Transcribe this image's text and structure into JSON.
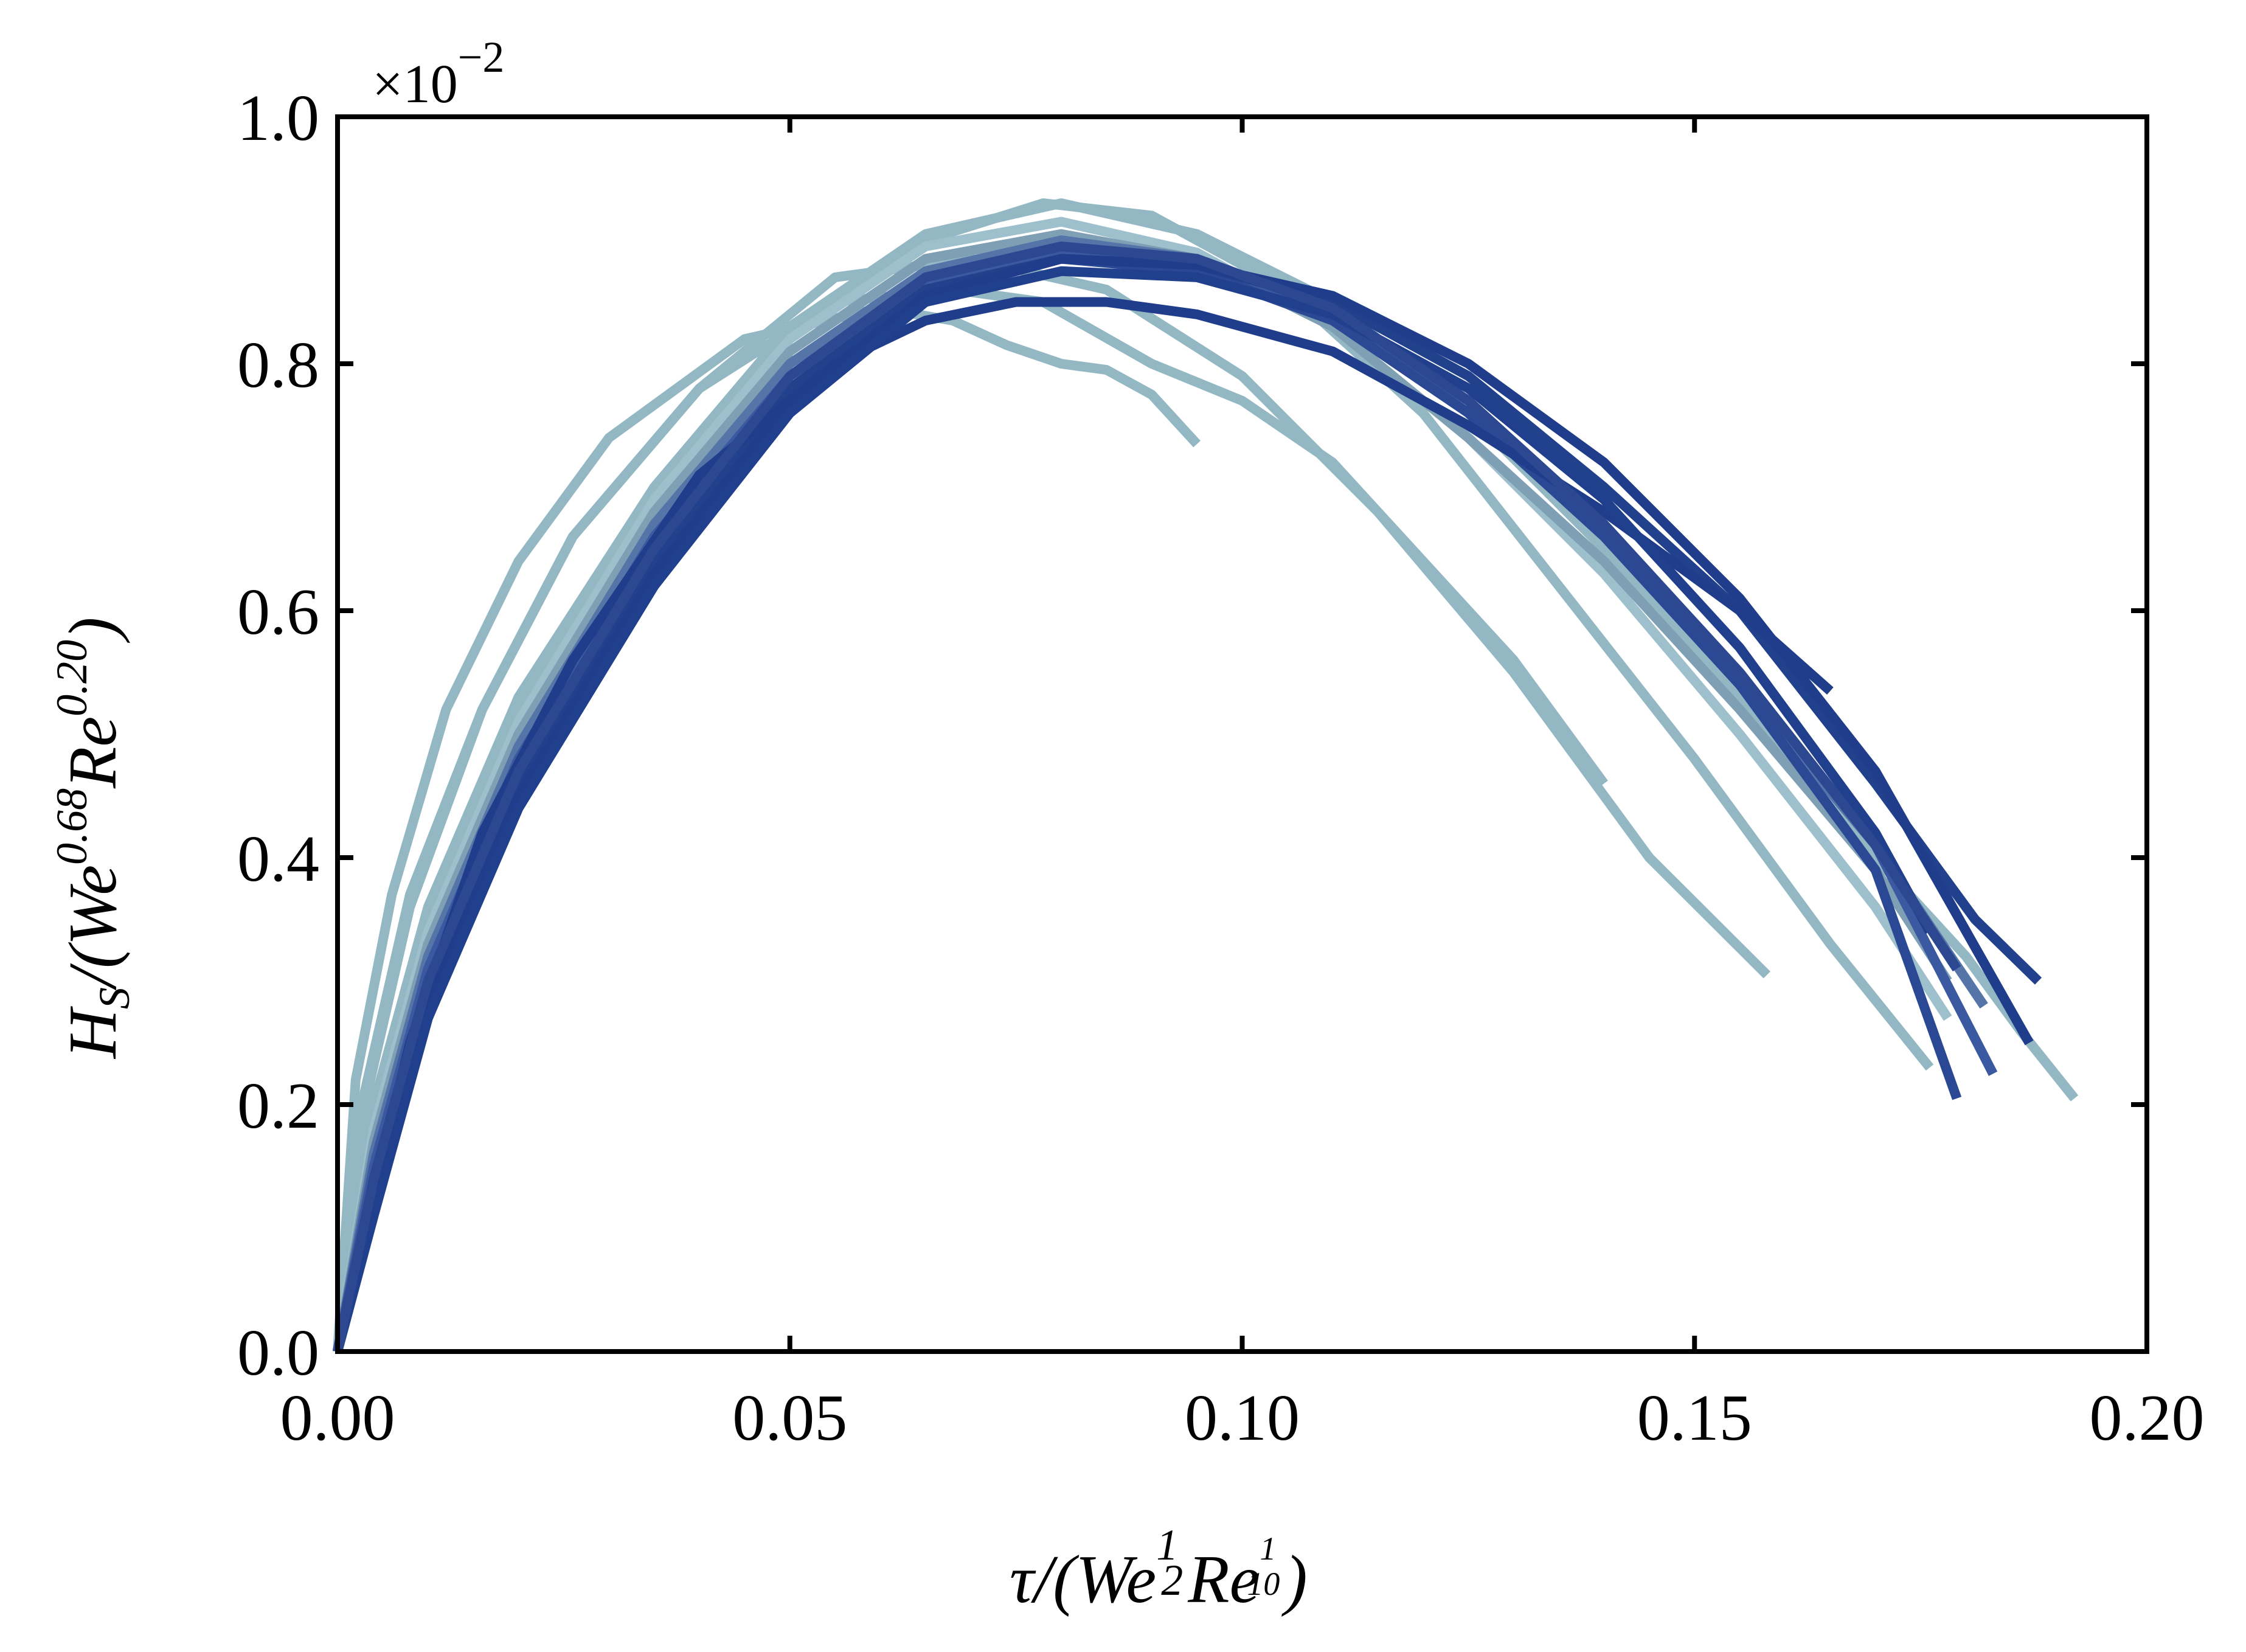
{
  "chart_data": {
    "type": "line",
    "xlim": [
      0.0,
      0.2
    ],
    "ylim": [
      0.0,
      1.0
    ],
    "xticks": [
      0.0,
      0.05,
      0.1,
      0.15,
      0.2
    ],
    "yticks": [
      0.0,
      0.2,
      0.4,
      0.6,
      0.8,
      1.0
    ],
    "xtick_labels": [
      "0.00",
      "0.05",
      "0.10",
      "0.15",
      "0.20"
    ],
    "ytick_labels": [
      "0.0",
      "0.2",
      "0.4",
      "0.6",
      "0.8",
      "1.0"
    ],
    "y_offset": {
      "prefix": "×10",
      "exponent": "−2"
    },
    "xlabel": {
      "base": "τ/(We",
      "exp1_num": "1",
      "exp1_den": "2",
      "mid": "Re",
      "exp2_num": "1",
      "exp2_den": "10",
      "close": ")"
    },
    "ylabel": {
      "h": "H",
      "h_sub": "S",
      "base": "/(We",
      "exp1": "0.68",
      "mid": "Re",
      "exp2": "0.20",
      "close": ")"
    },
    "grid": false,
    "legend": "none",
    "colors": {
      "light": "#93b8c4",
      "dark": "#1f3d8a",
      "axis": "#000000"
    },
    "series": [
      {
        "color": "#93b8c4",
        "x": [
          0,
          0.002,
          0.006,
          0.012,
          0.02,
          0.03,
          0.045,
          0.06,
          0.068,
          0.074,
          0.08,
          0.085,
          0.09,
          0.095
        ],
        "y": [
          0,
          0.22,
          0.37,
          0.52,
          0.64,
          0.74,
          0.82,
          0.845,
          0.835,
          0.815,
          0.8,
          0.795,
          0.775,
          0.735
        ]
      },
      {
        "color": "#93b8c4",
        "x": [
          0,
          0.003,
          0.008,
          0.016,
          0.026,
          0.04,
          0.055,
          0.068,
          0.078,
          0.09,
          0.1,
          0.11,
          0.12,
          0.13,
          0.14
        ],
        "y": [
          0,
          0.21,
          0.37,
          0.52,
          0.66,
          0.78,
          0.85,
          0.86,
          0.85,
          0.8,
          0.77,
          0.72,
          0.64,
          0.56,
          0.46
        ]
      },
      {
        "color": "#93b8c4",
        "x": [
          0,
          0.003,
          0.008,
          0.016,
          0.026,
          0.04,
          0.055,
          0.07,
          0.085,
          0.1,
          0.115,
          0.13,
          0.145,
          0.158
        ],
        "y": [
          0,
          0.2,
          0.36,
          0.52,
          0.66,
          0.78,
          0.87,
          0.885,
          0.86,
          0.79,
          0.68,
          0.55,
          0.4,
          0.305
        ]
      },
      {
        "color": "#93b8c4",
        "x": [
          0,
          0.004,
          0.01,
          0.02,
          0.035,
          0.05,
          0.065,
          0.078,
          0.09,
          0.105,
          0.12,
          0.135,
          0.15,
          0.165,
          0.176
        ],
        "y": [
          0,
          0.2,
          0.36,
          0.53,
          0.7,
          0.83,
          0.9,
          0.93,
          0.92,
          0.86,
          0.76,
          0.62,
          0.48,
          0.33,
          0.23
        ]
      },
      {
        "color": "#93b8c4",
        "x": [
          0,
          0.004,
          0.01,
          0.02,
          0.035,
          0.05,
          0.065,
          0.08,
          0.095,
          0.11,
          0.125,
          0.14,
          0.155,
          0.17,
          0.18,
          0.186,
          0.192
        ],
        "y": [
          0,
          0.19,
          0.35,
          0.52,
          0.7,
          0.83,
          0.905,
          0.93,
          0.905,
          0.85,
          0.76,
          0.65,
          0.53,
          0.4,
          0.32,
          0.26,
          0.205
        ]
      },
      {
        "color": "#9ec0cc",
        "x": [
          0,
          0.004,
          0.01,
          0.02,
          0.035,
          0.05,
          0.065,
          0.08,
          0.095,
          0.11,
          0.125,
          0.14,
          0.155,
          0.17,
          0.178
        ],
        "y": [
          0,
          0.18,
          0.34,
          0.51,
          0.69,
          0.82,
          0.895,
          0.915,
          0.89,
          0.83,
          0.74,
          0.63,
          0.5,
          0.36,
          0.27
        ]
      },
      {
        "color": "#7f9fb4",
        "x": [
          0,
          0.004,
          0.01,
          0.02,
          0.035,
          0.05,
          0.065,
          0.08,
          0.095,
          0.11,
          0.125,
          0.14,
          0.155,
          0.17,
          0.178
        ],
        "y": [
          0,
          0.17,
          0.33,
          0.5,
          0.68,
          0.81,
          0.885,
          0.905,
          0.885,
          0.83,
          0.74,
          0.64,
          0.52,
          0.39,
          0.3
        ]
      },
      {
        "color": "#5574a8",
        "x": [
          0,
          0.004,
          0.01,
          0.02,
          0.035,
          0.05,
          0.065,
          0.08,
          0.095,
          0.11,
          0.125,
          0.14,
          0.155,
          0.17,
          0.182
        ],
        "y": [
          0,
          0.16,
          0.32,
          0.49,
          0.67,
          0.8,
          0.875,
          0.9,
          0.885,
          0.84,
          0.76,
          0.66,
          0.54,
          0.41,
          0.28
        ]
      },
      {
        "color": "#3b59a0",
        "x": [
          0,
          0.004,
          0.01,
          0.02,
          0.035,
          0.05,
          0.065,
          0.08,
          0.095,
          0.11,
          0.125,
          0.14,
          0.155,
          0.17,
          0.183
        ],
        "y": [
          0,
          0.15,
          0.31,
          0.48,
          0.66,
          0.79,
          0.865,
          0.89,
          0.88,
          0.84,
          0.77,
          0.67,
          0.55,
          0.41,
          0.225
        ]
      },
      {
        "color": "#2a4894",
        "x": [
          0,
          0.004,
          0.01,
          0.02,
          0.035,
          0.05,
          0.065,
          0.08,
          0.095,
          0.11,
          0.125,
          0.14,
          0.155,
          0.17,
          0.179
        ],
        "y": [
          0,
          0.14,
          0.3,
          0.47,
          0.65,
          0.78,
          0.86,
          0.885,
          0.875,
          0.835,
          0.76,
          0.66,
          0.54,
          0.39,
          0.205
        ]
      },
      {
        "color": "#22418d",
        "x": [
          0,
          0.004,
          0.01,
          0.02,
          0.035,
          0.05,
          0.065,
          0.08,
          0.095,
          0.11,
          0.125,
          0.14,
          0.155,
          0.17,
          0.181,
          0.188
        ],
        "y": [
          0,
          0.13,
          0.29,
          0.46,
          0.64,
          0.78,
          0.86,
          0.885,
          0.88,
          0.85,
          0.79,
          0.7,
          0.6,
          0.46,
          0.35,
          0.3
        ]
      },
      {
        "color": "#1f3d8a",
        "x": [
          0,
          0.004,
          0.01,
          0.02,
          0.035,
          0.05,
          0.065,
          0.08,
          0.095,
          0.11,
          0.125,
          0.14,
          0.155,
          0.17,
          0.187
        ],
        "y": [
          0,
          0.12,
          0.28,
          0.45,
          0.63,
          0.77,
          0.855,
          0.885,
          0.88,
          0.855,
          0.8,
          0.72,
          0.61,
          0.47,
          0.25
        ]
      },
      {
        "color": "#1f3d8a",
        "x": [
          0,
          0.003,
          0.008,
          0.016,
          0.026,
          0.04,
          0.055,
          0.065,
          0.075,
          0.085,
          0.095,
          0.11,
          0.125,
          0.14,
          0.155,
          0.165
        ],
        "y": [
          0,
          0.1,
          0.25,
          0.42,
          0.56,
          0.71,
          0.8,
          0.835,
          0.85,
          0.85,
          0.84,
          0.81,
          0.75,
          0.68,
          0.6,
          0.535
        ]
      },
      {
        "color": "#203f8c",
        "x": [
          0,
          0.004,
          0.01,
          0.02,
          0.035,
          0.05,
          0.065,
          0.08,
          0.095,
          0.11,
          0.125,
          0.14,
          0.155,
          0.17,
          0.176
        ],
        "y": [
          0,
          0.11,
          0.27,
          0.44,
          0.62,
          0.76,
          0.85,
          0.875,
          0.87,
          0.84,
          0.78,
          0.69,
          0.57,
          0.42,
          0.34
        ]
      },
      {
        "color": "#2b4891",
        "x": [
          0,
          0.004,
          0.01,
          0.02,
          0.035,
          0.05,
          0.065,
          0.08,
          0.095,
          0.11,
          0.125,
          0.14,
          0.155,
          0.17,
          0.179
        ],
        "y": [
          0,
          0.14,
          0.3,
          0.47,
          0.65,
          0.79,
          0.87,
          0.895,
          0.885,
          0.845,
          0.77,
          0.67,
          0.55,
          0.41,
          0.31
        ]
      }
    ]
  }
}
